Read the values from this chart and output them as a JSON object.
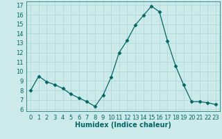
{
  "x": [
    0,
    1,
    2,
    3,
    4,
    5,
    6,
    7,
    8,
    9,
    10,
    11,
    12,
    13,
    14,
    15,
    16,
    17,
    18,
    19,
    20,
    21,
    22,
    23
  ],
  "y": [
    8,
    9.5,
    8.9,
    8.6,
    8.2,
    7.6,
    7.2,
    6.8,
    6.3,
    7.5,
    9.4,
    12.0,
    13.3,
    14.9,
    15.9,
    16.9,
    16.3,
    13.2,
    10.6,
    8.6,
    6.8,
    6.8,
    6.7,
    6.5
  ],
  "line_color": "#006666",
  "marker": "D",
  "marker_size": 2.5,
  "bg_color": "#cceaea",
  "grid_color": "#aad4d4",
  "xlabel": "Humidex (Indice chaleur)",
  "xlabel_fontsize": 7,
  "tick_fontsize": 6,
  "ylim": [
    5.8,
    17.4
  ],
  "xlim": [
    -0.5,
    23.5
  ],
  "yticks": [
    6,
    7,
    8,
    9,
    10,
    11,
    12,
    13,
    14,
    15,
    16,
    17
  ],
  "xticks": [
    0,
    1,
    2,
    3,
    4,
    5,
    6,
    7,
    8,
    9,
    10,
    11,
    12,
    13,
    14,
    15,
    16,
    17,
    18,
    19,
    20,
    21,
    22,
    23
  ]
}
